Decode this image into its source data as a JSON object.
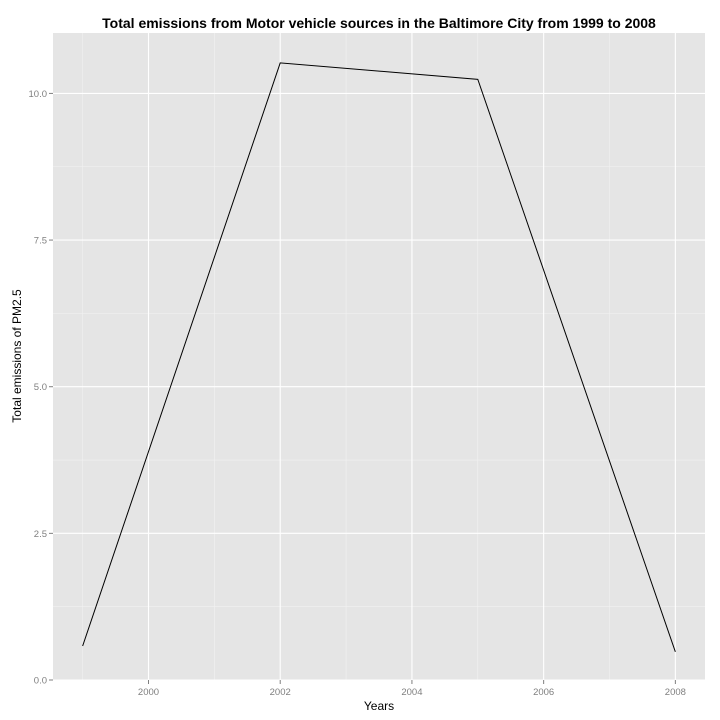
{
  "chart_data": {
    "type": "line",
    "title": "Total emissions from Motor vehicle sources in the Baltimore City from 1999 to 2008",
    "xlabel": "Years",
    "ylabel": "Total emissions of PM2.5",
    "x": [
      1999,
      2002,
      2005,
      2008
    ],
    "y": [
      0.58,
      10.52,
      10.24,
      0.48
    ],
    "xlim": [
      1998.55,
      2008.45
    ],
    "ylim": [
      0.0,
      11.03
    ],
    "x_ticks": [
      2000,
      2002,
      2004,
      2006,
      2008
    ],
    "x_tick_labels": [
      "2000",
      "2002",
      "2004",
      "2006",
      "2008"
    ],
    "x_minor_ticks": [
      1999,
      2001,
      2003,
      2005,
      2007
    ],
    "y_ticks": [
      0.0,
      2.5,
      5.0,
      7.5,
      10.0
    ],
    "y_tick_labels": [
      "0.0",
      "2.5",
      "5.0",
      "7.5",
      "10.0"
    ],
    "y_minor_ticks": [
      1.25,
      3.75,
      6.25,
      8.75
    ],
    "grid": true,
    "panel_background": "#e5e5e5",
    "line_color": "#000000"
  }
}
